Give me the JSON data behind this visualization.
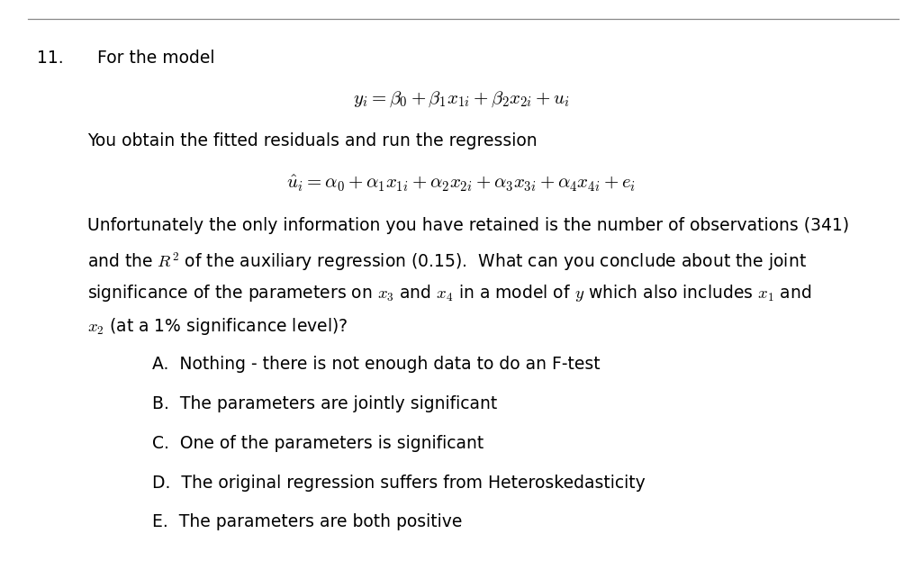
{
  "background_color": "#ffffff",
  "question_number": "11.",
  "intro_text": "For the model",
  "eq1": "$y_i = \\beta_0 + \\beta_1 x_{1i} + \\beta_2 x_{2i} + u_i$",
  "transition_text": "You obtain the fitted residuals and run the regression",
  "eq2": "$\\hat{u}_i = \\alpha_0 + \\alpha_1 x_{1i} + \\alpha_2 x_{2i} + \\alpha_3 x_{3i} + \\alpha_4 x_{4i} + e_i$",
  "para_line1": "Unfortunately the only information you have retained is the number of observations (341)",
  "para_line2": "and the $R^2$ of the auxiliary regression (0.15).  What can you conclude about the joint",
  "para_line3": "significance of the parameters on $x_3$ and $x_4$ in a model of $y$ which also includes $x_1$ and",
  "para_line4": "$x_2$ (at a 1% significance level)?",
  "options": [
    "A.  Nothing - there is not enough data to do an F-test",
    "B.  The parameters are jointly significant",
    "C.  One of the parameters is significant",
    "D.  The original regression suffers from Heteroskedasticity",
    "E.  The parameters are both positive"
  ],
  "font_size_main": 13.5,
  "font_size_eq": 15,
  "text_color": "#000000",
  "fig_width": 10.24,
  "fig_height": 6.43,
  "line_color": "#888888",
  "line_width": 0.9
}
